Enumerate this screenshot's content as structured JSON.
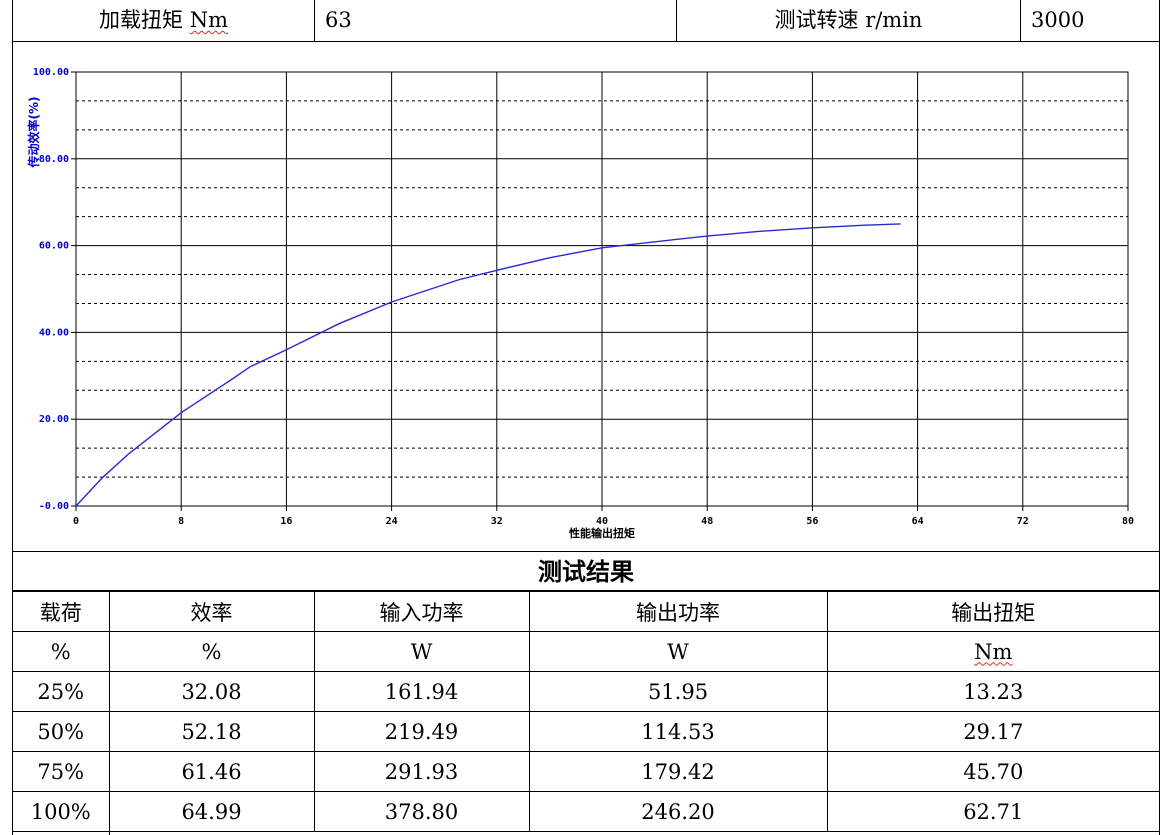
{
  "header": {
    "load_torque_label": "加载扭矩",
    "load_torque_unit": "Nm",
    "load_torque_value": "63",
    "speed_label": "测试转速 r/min",
    "speed_value": "3000"
  },
  "chart_data": {
    "type": "line",
    "xlabel": "性能输出扭矩",
    "ylabel": "传动效率(%)",
    "xlim": [
      0,
      80
    ],
    "ylim": [
      0,
      100
    ],
    "x_ticks": [
      "0",
      "8",
      "16",
      "24",
      "32",
      "40",
      "48",
      "56",
      "64",
      "72",
      "80"
    ],
    "y_ticks": [
      "-0.00",
      "20.00",
      "40.00",
      "60.00",
      "80.00",
      "100.00"
    ],
    "grid": true,
    "line_color": "#2a2ad0",
    "axis_label_color": "#0000cc",
    "series": [
      {
        "x": [
          0,
          2,
          4,
          8,
          12,
          13.23,
          16,
          20,
          24,
          29.17,
          32,
          36,
          40,
          45.7,
          48,
          52,
          56,
          60,
          62.71
        ],
        "y": [
          0,
          6.5,
          12,
          21.5,
          29.5,
          32.08,
          36,
          42,
          47,
          52.18,
          54.3,
          57.2,
          59.5,
          61.46,
          62.2,
          63.3,
          64.1,
          64.7,
          64.99
        ]
      }
    ]
  },
  "results": {
    "title": "测试结果",
    "headers": [
      "载荷",
      "效率",
      "输入功率",
      "输出功率",
      "输出扭矩"
    ],
    "units": [
      "%",
      "%",
      "W",
      "W",
      "Nm"
    ],
    "rows": [
      [
        "25%",
        "32.08",
        "161.94",
        "51.95",
        "13.23"
      ],
      [
        "50%",
        "52.18",
        "219.49",
        "114.53",
        "29.17"
      ],
      [
        "75%",
        "61.46",
        "291.93",
        "179.42",
        "45.70"
      ],
      [
        "100%",
        "64.99",
        "378.80",
        "246.20",
        "62.71"
      ]
    ]
  }
}
